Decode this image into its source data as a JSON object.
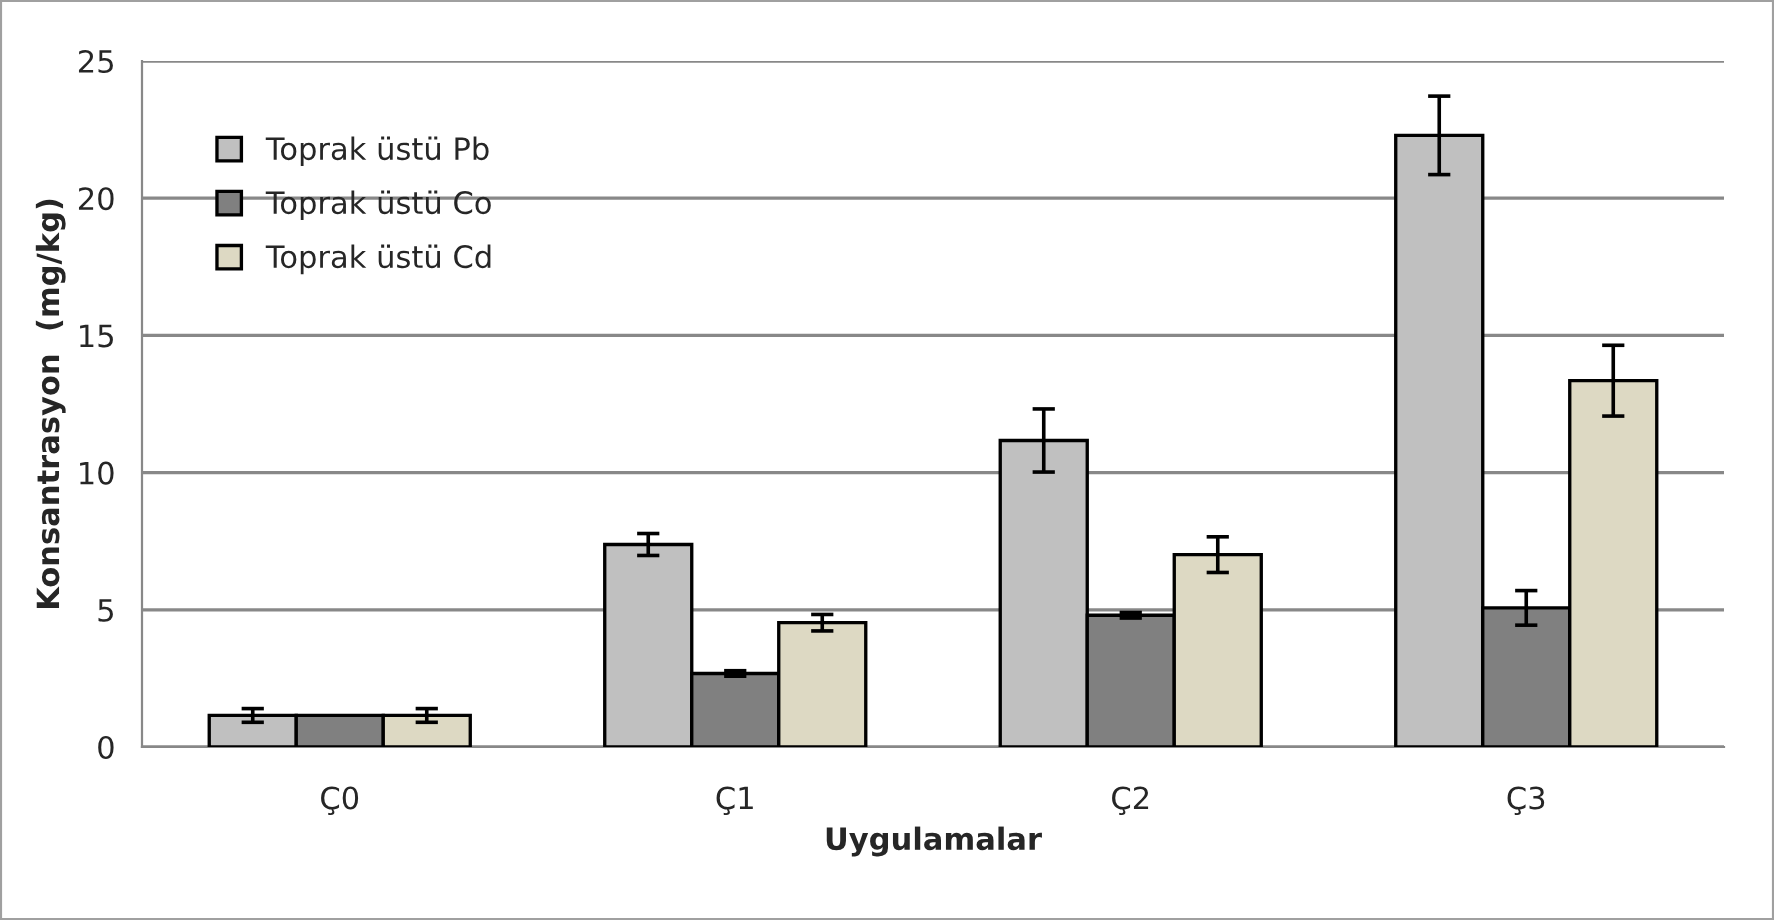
{
  "chart_data": {
    "type": "bar",
    "xlabel": "Uygulamalar",
    "ylabel": "Konsantrasyon  (mg/kg)",
    "categories": [
      "Ç0",
      "Ç1",
      "Ç2",
      "Ç3"
    ],
    "series": [
      {
        "name": "Toprak üstü Pb",
        "color": "#c0c0c0",
        "values": [
          1.15,
          7.38,
          11.17,
          22.29
        ],
        "errors": [
          0.25,
          0.4,
          1.15,
          1.43
        ]
      },
      {
        "name": "Toprak üstü Co",
        "color": "#808080",
        "values": [
          1.15,
          2.68,
          4.8,
          5.07
        ],
        "errors": [
          null,
          0.1,
          0.1,
          0.63
        ]
      },
      {
        "name": "Toprak üstü Cd",
        "color": "#ddd9c3",
        "values": [
          1.15,
          4.53,
          7.01,
          13.35
        ],
        "errors": [
          0.25,
          0.3,
          0.65,
          1.29
        ]
      }
    ],
    "ylim": [
      0,
      25
    ],
    "yticks": [
      0,
      5,
      10,
      15,
      20,
      25
    ],
    "grid": "y",
    "legend": "top left"
  }
}
